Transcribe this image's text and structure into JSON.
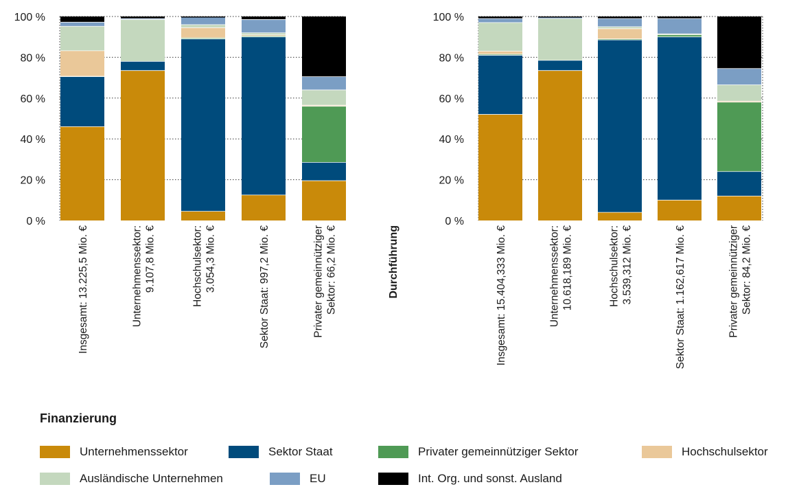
{
  "chart_data": [
    {
      "type": "bar",
      "stacked": true,
      "side_label": "",
      "categories": [
        [
          "Insgesamt: 13.225,5 Mio. €"
        ],
        [
          "Unternehmenssektor:",
          "9.107,8 Mio. €"
        ],
        [
          "Hochschulsektor:",
          "3.054,3 Mio. €"
        ],
        [
          "Sektor Staat: 997,2 Mio. €"
        ],
        [
          "Privater gemeinnütziger",
          "Sektor: 66,2 Mio. €"
        ]
      ],
      "series": [
        {
          "name": "Unternehmenssektor",
          "values": [
            46.0,
            73.5,
            4.5,
            12.5,
            19.5
          ]
        },
        {
          "name": "Sektor Staat",
          "values": [
            24.5,
            4.5,
            84.5,
            77.5,
            9.0
          ]
        },
        {
          "name": "Privater gemeinnütziger Sektor",
          "values": [
            0.2,
            0.0,
            0.5,
            0.5,
            27.5
          ]
        },
        {
          "name": "Hochschulsektor",
          "values": [
            12.5,
            0.0,
            5.0,
            0.5,
            0.5
          ]
        },
        {
          "name": "Ausländische Unternehmen",
          "values": [
            12.0,
            20.5,
            1.5,
            1.0,
            7.5
          ]
        },
        {
          "name": "EU",
          "values": [
            2.0,
            0.5,
            3.5,
            6.5,
            6.5
          ]
        },
        {
          "name": "Int. Org. und sonst. Ausland",
          "values": [
            2.8,
            1.0,
            0.5,
            1.5,
            29.5
          ]
        }
      ],
      "ylim": [
        0,
        100
      ],
      "yticks": [
        "0 %",
        "20 %",
        "40 %",
        "60 %",
        "80 %",
        "100 %"
      ],
      "grid": true
    },
    {
      "type": "bar",
      "stacked": true,
      "side_label": "Durchführung",
      "categories": [
        [
          "Insgesamt: 15.404,333 Mio. €"
        ],
        [
          "Unternehmenssektor:",
          "10.618,189 Mio. €"
        ],
        [
          "Hochschulsektor:",
          "3.539,312 Mio. €"
        ],
        [
          "Sektor Staat: 1.162,617 Mio. €"
        ],
        [
          "Privater gemeinnütziger",
          "Sektor: 84,2 Mio. €"
        ]
      ],
      "series": [
        {
          "name": "Unternehmenssektor",
          "values": [
            52.0,
            73.5,
            4.0,
            10.0,
            12.0
          ]
        },
        {
          "name": "Sektor Staat",
          "values": [
            29.0,
            5.0,
            84.5,
            80.0,
            12.0
          ]
        },
        {
          "name": "Privater gemeinnütziger Sektor",
          "values": [
            0.5,
            0.0,
            0.5,
            1.0,
            34.0
          ]
        },
        {
          "name": "Hochschulsektor",
          "values": [
            1.5,
            0.0,
            5.0,
            0.0,
            0.5
          ]
        },
        {
          "name": "Ausländische Unternehmen",
          "values": [
            14.0,
            20.5,
            1.0,
            0.5,
            8.0
          ]
        },
        {
          "name": "EU",
          "values": [
            2.0,
            0.5,
            4.0,
            7.5,
            8.0
          ]
        },
        {
          "name": "Int. Org. und sonst. Ausland",
          "values": [
            1.0,
            0.5,
            1.0,
            1.0,
            25.5
          ]
        }
      ],
      "ylim": [
        0,
        100
      ],
      "yticks": [
        "0 %",
        "20 %",
        "40 %",
        "60 %",
        "80 %",
        "100 %"
      ],
      "grid": true
    }
  ],
  "legend": {
    "title": "Finanzierung",
    "items": [
      {
        "label": "Unternehmenssektor",
        "color": "#C98A0A"
      },
      {
        "label": "Sektor Staat",
        "color": "#004B7C"
      },
      {
        "label": "Privater gemeinnütziger Sektor",
        "color": "#4F9A55"
      },
      {
        "label": "Hochschulsektor",
        "color": "#EAC899"
      },
      {
        "label": "Ausländische Unternehmen",
        "color": "#C4D8BE"
      },
      {
        "label": "EU",
        "color": "#7B9EC4"
      },
      {
        "label": "Int. Org. und sonst. Ausland",
        "color": "#000000"
      }
    ]
  }
}
